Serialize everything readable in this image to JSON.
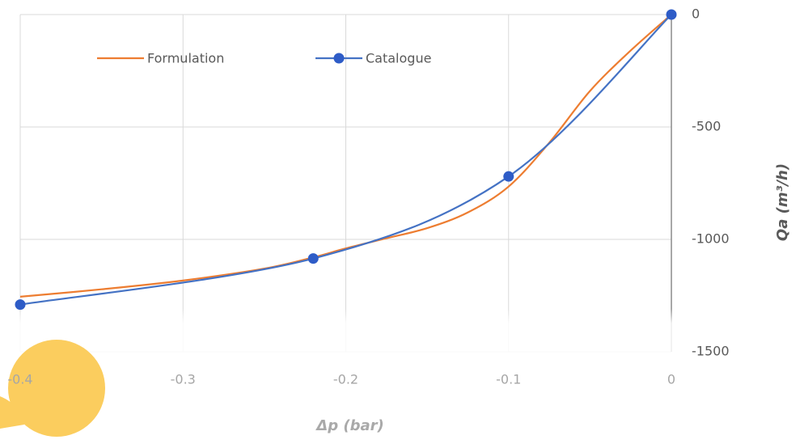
{
  "chart_data": {
    "type": "line",
    "x_label": "Δp (bar)",
    "y_label": "Qa (m³/h)",
    "series": [
      {
        "name": "Formulation",
        "color": "#ed7d31",
        "markers": false,
        "x": [
          -0.4,
          -0.35,
          -0.3,
          -0.25,
          -0.22,
          -0.2,
          -0.175,
          -0.15,
          -0.125,
          -0.1,
          -0.075,
          -0.05,
          -0.025,
          0
        ],
        "values": [
          -1255,
          -1222,
          -1183,
          -1130,
          -1080,
          -1040,
          -995,
          -950,
          -880,
          -765,
          -570,
          -340,
          -160,
          0
        ]
      },
      {
        "name": "Catalogue",
        "color": "#4472c4",
        "markers": true,
        "x": [
          -0.4,
          -0.22,
          -0.1,
          0
        ],
        "values": [
          -1290,
          -1085,
          -720,
          0
        ]
      }
    ],
    "xlim": [
      -0.4,
      0
    ],
    "xticks": [
      -0.4,
      -0.3,
      -0.2,
      -0.1,
      0
    ],
    "ylim": [
      -1500,
      0
    ],
    "yticks": [
      -1500,
      -1000,
      -500,
      0
    ],
    "y_axis_side": "right",
    "grid": true,
    "legend": "top"
  }
}
